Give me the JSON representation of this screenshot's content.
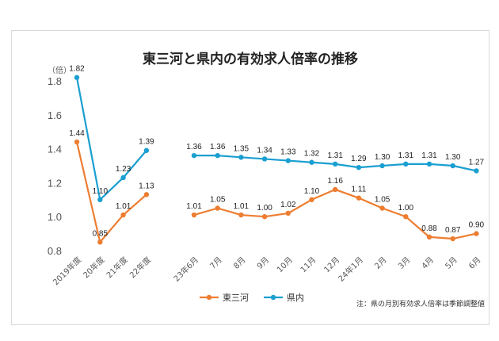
{
  "chart_data": {
    "type": "line",
    "title": "東三河と県内の有効求人倍率の推移",
    "y_unit_label": "（倍）",
    "ylim": [
      0.8,
      1.8
    ],
    "y_ticks": [
      "0.8",
      "1.0",
      "1.2",
      "1.4",
      "1.6",
      "1.8"
    ],
    "categories": [
      "2019年度",
      "20年度",
      "21年度",
      "22年度",
      "23年6月",
      "7月",
      "8月",
      "9月",
      "10月",
      "11月",
      "12月",
      "24年1月",
      "2月",
      "3月",
      "4月",
      "5月",
      "6月"
    ],
    "series": [
      {
        "name": "東三河",
        "color": "#ed7d31",
        "segments": [
          {
            "start_index": 0,
            "values": [
              1.44,
              0.85,
              1.01,
              1.13
            ],
            "labels": [
              "1.44",
              "0.85",
              "1.01",
              "1.13"
            ]
          },
          {
            "start_index": 4,
            "values": [
              1.01,
              1.05,
              1.01,
              1.0,
              1.02,
              1.1,
              1.16,
              1.11,
              1.05,
              1.0,
              0.88,
              0.87,
              0.9
            ],
            "labels": [
              "1.01",
              "1.05",
              "1.01",
              "1.00",
              "1.02",
              "1.10",
              "1.16",
              "1.11",
              "1.05",
              "1.00",
              "0.88",
              "0.87",
              "0.90"
            ]
          }
        ]
      },
      {
        "name": "県内",
        "color": "#1a9fd1",
        "segments": [
          {
            "start_index": 0,
            "values": [
              1.82,
              1.1,
              1.23,
              1.39
            ],
            "labels": [
              "1.82",
              "1.10",
              "1.23",
              "1.39"
            ]
          },
          {
            "start_index": 4,
            "values": [
              1.36,
              1.36,
              1.35,
              1.34,
              1.33,
              1.32,
              1.31,
              1.29,
              1.3,
              1.31,
              1.31,
              1.3,
              1.27
            ],
            "labels": [
              "1.36",
              "1.36",
              "1.35",
              "1.34",
              "1.33",
              "1.32",
              "1.31",
              "1.29",
              "1.30",
              "1.31",
              "1.31",
              "1.30",
              "1.27"
            ]
          }
        ]
      }
    ],
    "legend_position": "bottom",
    "note": "注：県の月別有効求人倍率は季節調整値",
    "grid": false
  }
}
